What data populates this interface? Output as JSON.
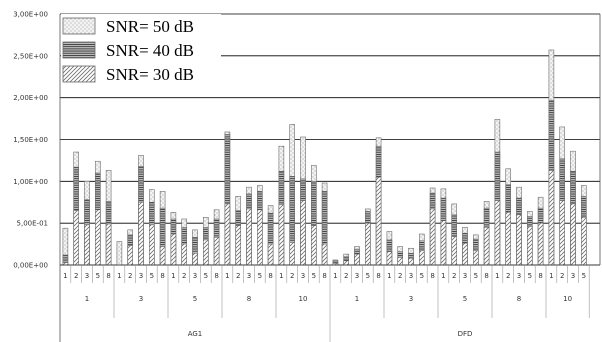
{
  "chart_data": {
    "type": "bar",
    "stacking": "overlay",
    "ylim": [
      0,
      3.0
    ],
    "yticks": [
      "0,00E+00",
      "5,00E-01",
      "1,00E+00",
      "1,50E+00",
      "2,00E+00",
      "2,50E+00",
      "3,00E+00"
    ],
    "grid": true,
    "legend_position": "top-left",
    "x_levels": {
      "sub_labels": [
        "1",
        "2",
        "3",
        "5",
        "8"
      ],
      "mid_labels": [
        "1",
        "3",
        "5",
        "8",
        "10"
      ],
      "top_labels": [
        "AG1",
        "DFD"
      ]
    },
    "series": [
      {
        "name": "SNR= 50 dB",
        "values": [
          0.44,
          1.35,
          1.0,
          1.24,
          1.13,
          0.28,
          0.42,
          1.31,
          0.9,
          0.88,
          0.63,
          0.55,
          0.42,
          0.57,
          0.66,
          1.59,
          0.82,
          0.93,
          0.95,
          0.71,
          1.42,
          1.68,
          1.53,
          1.19,
          0.98,
          0.06,
          0.13,
          0.22,
          0.67,
          1.52,
          0.4,
          0.22,
          0.2,
          0.37,
          0.92,
          0.91,
          0.73,
          0.45,
          0.36,
          0.76,
          1.74,
          1.15,
          0.93,
          0.64,
          0.81,
          2.57,
          1.65,
          1.36,
          0.95
        ]
      },
      {
        "name": "SNR= 40 dB",
        "values": [
          0.12,
          1.17,
          0.78,
          1.1,
          0.76,
          0.0,
          0.36,
          1.18,
          0.75,
          0.68,
          0.55,
          0.45,
          0.33,
          0.45,
          0.55,
          1.56,
          0.65,
          0.85,
          0.88,
          0.62,
          1.12,
          1.06,
          1.03,
          1.0,
          0.88,
          0.05,
          0.1,
          0.19,
          0.64,
          1.42,
          0.3,
          0.16,
          0.14,
          0.29,
          0.86,
          0.8,
          0.6,
          0.38,
          0.31,
          0.68,
          1.35,
          0.96,
          0.8,
          0.58,
          0.68,
          1.97,
          1.27,
          1.12,
          0.82
        ]
      },
      {
        "name": "SNR= 30 dB",
        "values": [
          0.03,
          0.65,
          0.48,
          0.66,
          0.49,
          0.0,
          0.23,
          0.75,
          0.48,
          0.22,
          0.37,
          0.25,
          0.14,
          0.3,
          0.33,
          0.73,
          0.47,
          0.67,
          0.66,
          0.25,
          0.72,
          0.27,
          0.77,
          0.47,
          0.25,
          0.02,
          0.05,
          0.13,
          0.5,
          1.05,
          0.16,
          0.09,
          0.08,
          0.17,
          0.67,
          0.53,
          0.34,
          0.26,
          0.17,
          0.45,
          0.77,
          0.63,
          0.6,
          0.46,
          0.5,
          1.13,
          0.77,
          0.73,
          0.57
        ]
      }
    ]
  }
}
